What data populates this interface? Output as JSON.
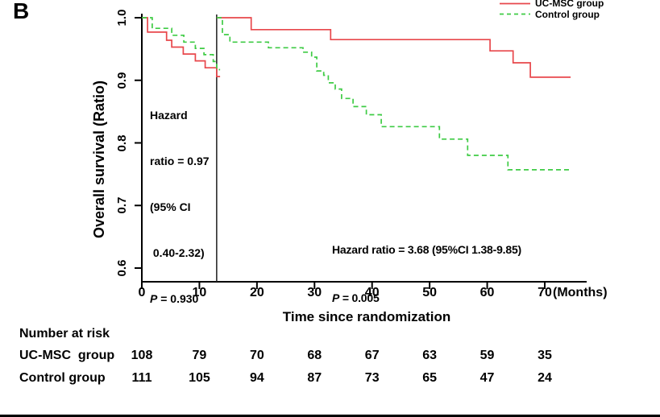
{
  "panel_label": "B",
  "colors": {
    "ucmsc_red": "#e8474b",
    "control_green": "#3ecb44",
    "axis_black": "#000000",
    "landmark_line": "#2b2b2b"
  },
  "legend": [
    {
      "label": "UC-MSC group",
      "color": "#e8474b",
      "dashed": false
    },
    {
      "label": "Control group",
      "color": "#3ecb44",
      "dashed": true
    }
  ],
  "annotations": {
    "pre_landmark": {
      "lines": [
        "Hazard",
        "ratio = 0.97",
        "(95% CI",
        " 0.40-2.32)"
      ],
      "p_label": "P",
      "p_rest": " = 0.930"
    },
    "post_landmark": {
      "line1": "Hazard ratio = 3.68 (95%CI 1.38-9.85)",
      "p_label": "P",
      "p_rest": " = 0.005"
    }
  },
  "chart_data": {
    "type": "line",
    "subtype": "kaplan-meier-step",
    "title": "",
    "ylabel": "Overall survival (Ratio)",
    "xlabel": "Time since randomization",
    "x_unit_label": "(Months)",
    "xticks": [
      0,
      10,
      20,
      30,
      40,
      50,
      60,
      70
    ],
    "yticks": [
      0.6,
      0.7,
      0.8,
      0.9,
      1.0
    ],
    "xlim": [
      0,
      77
    ],
    "ylim": [
      0.575,
      1.0
    ],
    "grid": false,
    "legend_position": "top-right",
    "landmark_x": 13,
    "series": [
      {
        "name": "UC-MSC group (0-13 months)",
        "color": "#e8474b",
        "dashed": false,
        "points": [
          [
            0,
            1.0
          ],
          [
            1,
            0.977
          ],
          [
            4.3,
            0.964
          ],
          [
            5.2,
            0.953
          ],
          [
            7.2,
            0.942
          ],
          [
            9.3,
            0.931
          ],
          [
            11,
            0.92
          ],
          [
            13,
            0.906
          ],
          [
            13.6,
            0.906
          ]
        ]
      },
      {
        "name": "Control group (0-13 months)",
        "color": "#3ecb44",
        "dashed": true,
        "points": [
          [
            0,
            1.0
          ],
          [
            1.8,
            0.983
          ],
          [
            5.2,
            0.972
          ],
          [
            7.3,
            0.961
          ],
          [
            9.3,
            0.951
          ],
          [
            10.8,
            0.941
          ],
          [
            12.4,
            0.93
          ],
          [
            13,
            0.917
          ],
          [
            13.6,
            0.917
          ]
        ]
      },
      {
        "name": "UC-MSC group (13+ months, landmark)",
        "color": "#e8474b",
        "dashed": false,
        "points": [
          [
            13,
            1.0
          ],
          [
            19,
            0.981
          ],
          [
            32.8,
            0.965
          ],
          [
            60.5,
            0.947
          ],
          [
            64.5,
            0.928
          ],
          [
            67.5,
            0.905
          ],
          [
            74.5,
            0.905
          ]
        ]
      },
      {
        "name": "Control group (13+ months, landmark)",
        "color": "#3ecb44",
        "dashed": true,
        "points": [
          [
            13,
            1.0
          ],
          [
            14,
            0.973
          ],
          [
            15.3,
            0.961
          ],
          [
            22,
            0.952
          ],
          [
            28,
            0.945
          ],
          [
            29.5,
            0.937
          ],
          [
            30.4,
            0.915
          ],
          [
            31.6,
            0.908
          ],
          [
            32.4,
            0.896
          ],
          [
            33.6,
            0.886
          ],
          [
            34.7,
            0.871
          ],
          [
            36.7,
            0.858
          ],
          [
            39,
            0.845
          ],
          [
            41.6,
            0.826
          ],
          [
            51.7,
            0.806
          ],
          [
            56.6,
            0.78
          ],
          [
            63.6,
            0.757
          ],
          [
            74.5,
            0.757
          ]
        ]
      }
    ]
  },
  "risk_table": {
    "header": "Number at risk",
    "time_points": [
      0,
      10,
      20,
      30,
      40,
      50,
      60,
      70
    ],
    "rows": [
      {
        "label": "UC-MSC  group",
        "values": [
          108,
          79,
          70,
          68,
          67,
          63,
          59,
          35
        ]
      },
      {
        "label": "Control group",
        "values": [
          111,
          105,
          94,
          87,
          73,
          65,
          47,
          24
        ]
      }
    ]
  }
}
